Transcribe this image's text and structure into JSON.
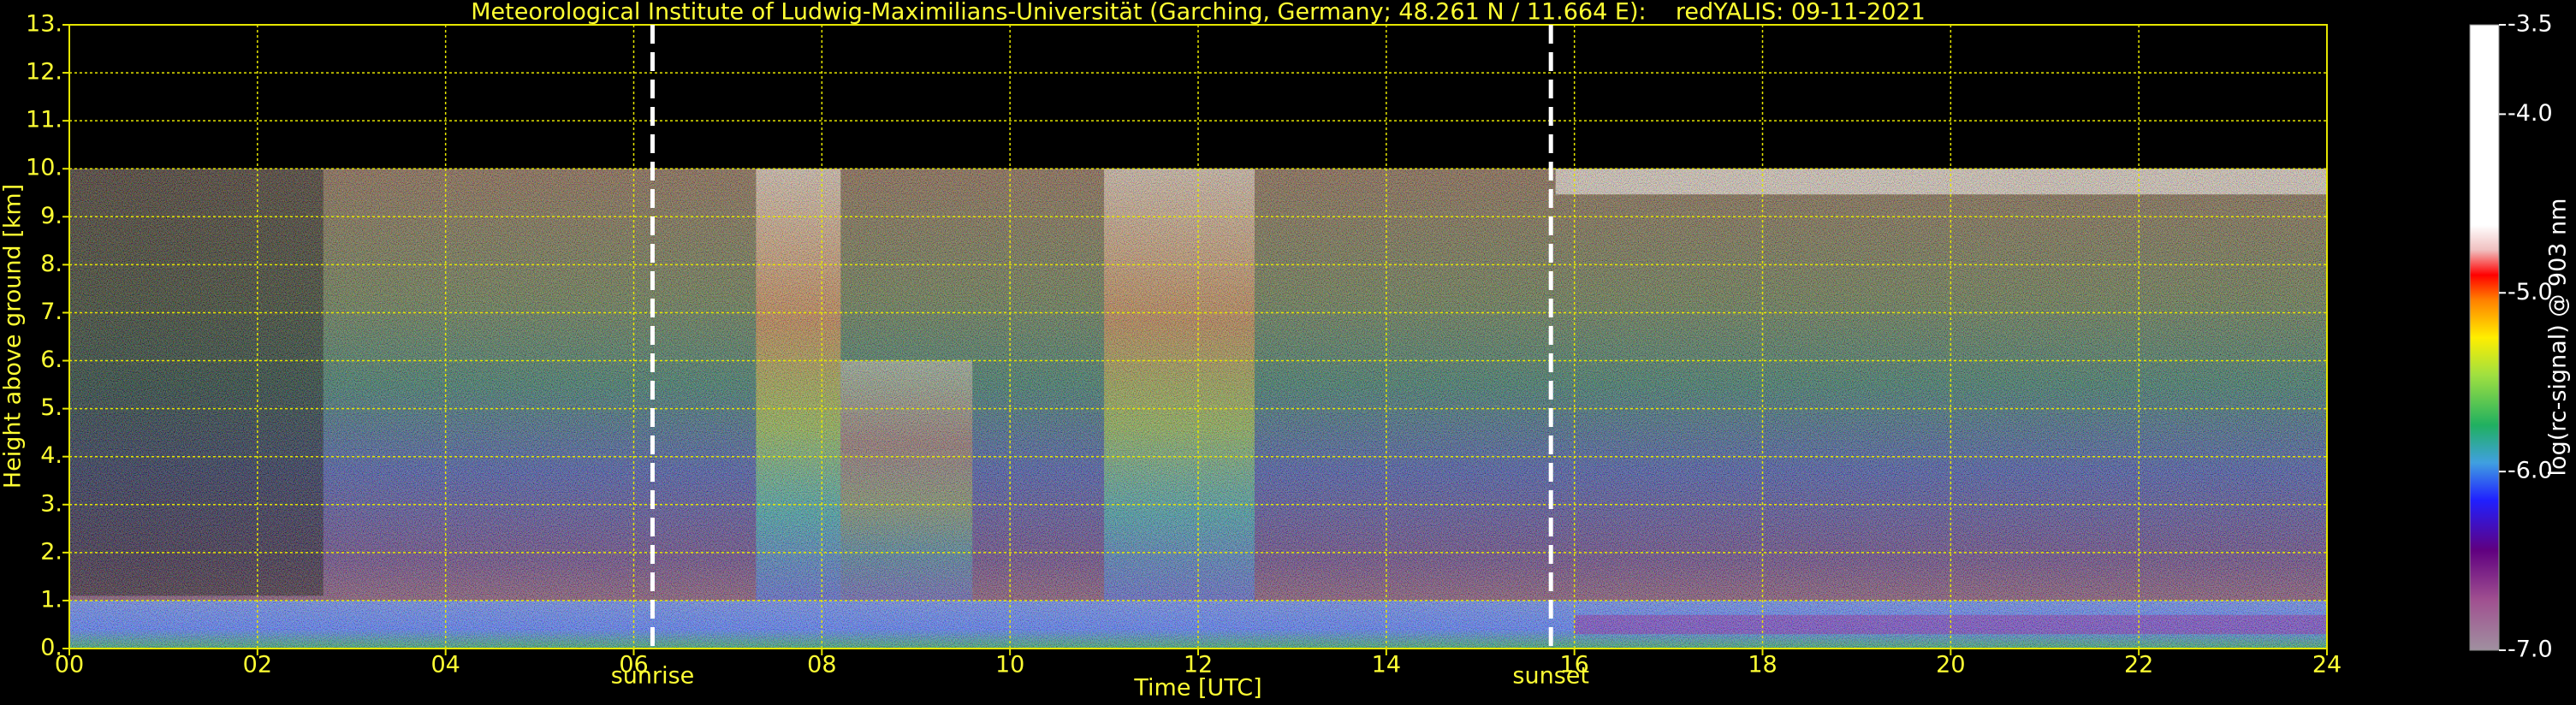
{
  "chart_data": {
    "type": "heatmap",
    "title": "Meteorological Institute of Ludwig-Maximilians-Universität (Garching, Germany; 48.261 N / 11.664 E):    redYALIS: 09-11-2021",
    "x_label": "Time [UTC]",
    "y_label": "Height above ground [km]",
    "xlim": [
      0,
      24
    ],
    "xticks": [
      {
        "value": 0,
        "label": "00"
      },
      {
        "value": 2,
        "label": "02"
      },
      {
        "value": 4,
        "label": "04"
      },
      {
        "value": 6,
        "label": "06"
      },
      {
        "value": 8,
        "label": "08"
      },
      10,
      12,
      14,
      16,
      18,
      20,
      22,
      24
    ],
    "ylim": [
      0,
      13
    ],
    "yticks": [
      {
        "value": 0,
        "label": "0."
      },
      {
        "value": 1,
        "label": "1."
      },
      {
        "value": 2,
        "label": "2."
      },
      {
        "value": 3,
        "label": "3."
      },
      {
        "value": 4,
        "label": "4."
      },
      {
        "value": 5,
        "label": "5."
      },
      {
        "value": 6,
        "label": "6."
      },
      {
        "value": 7,
        "label": "7."
      },
      {
        "value": 8,
        "label": "8."
      },
      {
        "value": 9,
        "label": "9."
      },
      {
        "value": 10,
        "label": "10."
      },
      {
        "value": 11,
        "label": "11."
      },
      {
        "value": 12,
        "label": "12."
      },
      {
        "value": 13,
        "label": "13."
      }
    ],
    "grid": true,
    "annotations": [
      {
        "text": "sunrise",
        "x": 6.2
      },
      {
        "text": "sunset",
        "x": 15.75
      }
    ],
    "colorbar": {
      "label": "log(rc-signal) @ 903 nm",
      "lim": [
        -7.0,
        -3.5
      ],
      "ticks": [
        {
          "value": -7.0,
          "label": "-7.0"
        },
        {
          "value": -6.0,
          "label": "-6.0"
        },
        {
          "value": -5.0,
          "label": "-5.0"
        },
        {
          "value": -4.0,
          "label": "-4.0"
        },
        {
          "value": -3.5,
          "label": "-3.5"
        }
      ]
    }
  }
}
